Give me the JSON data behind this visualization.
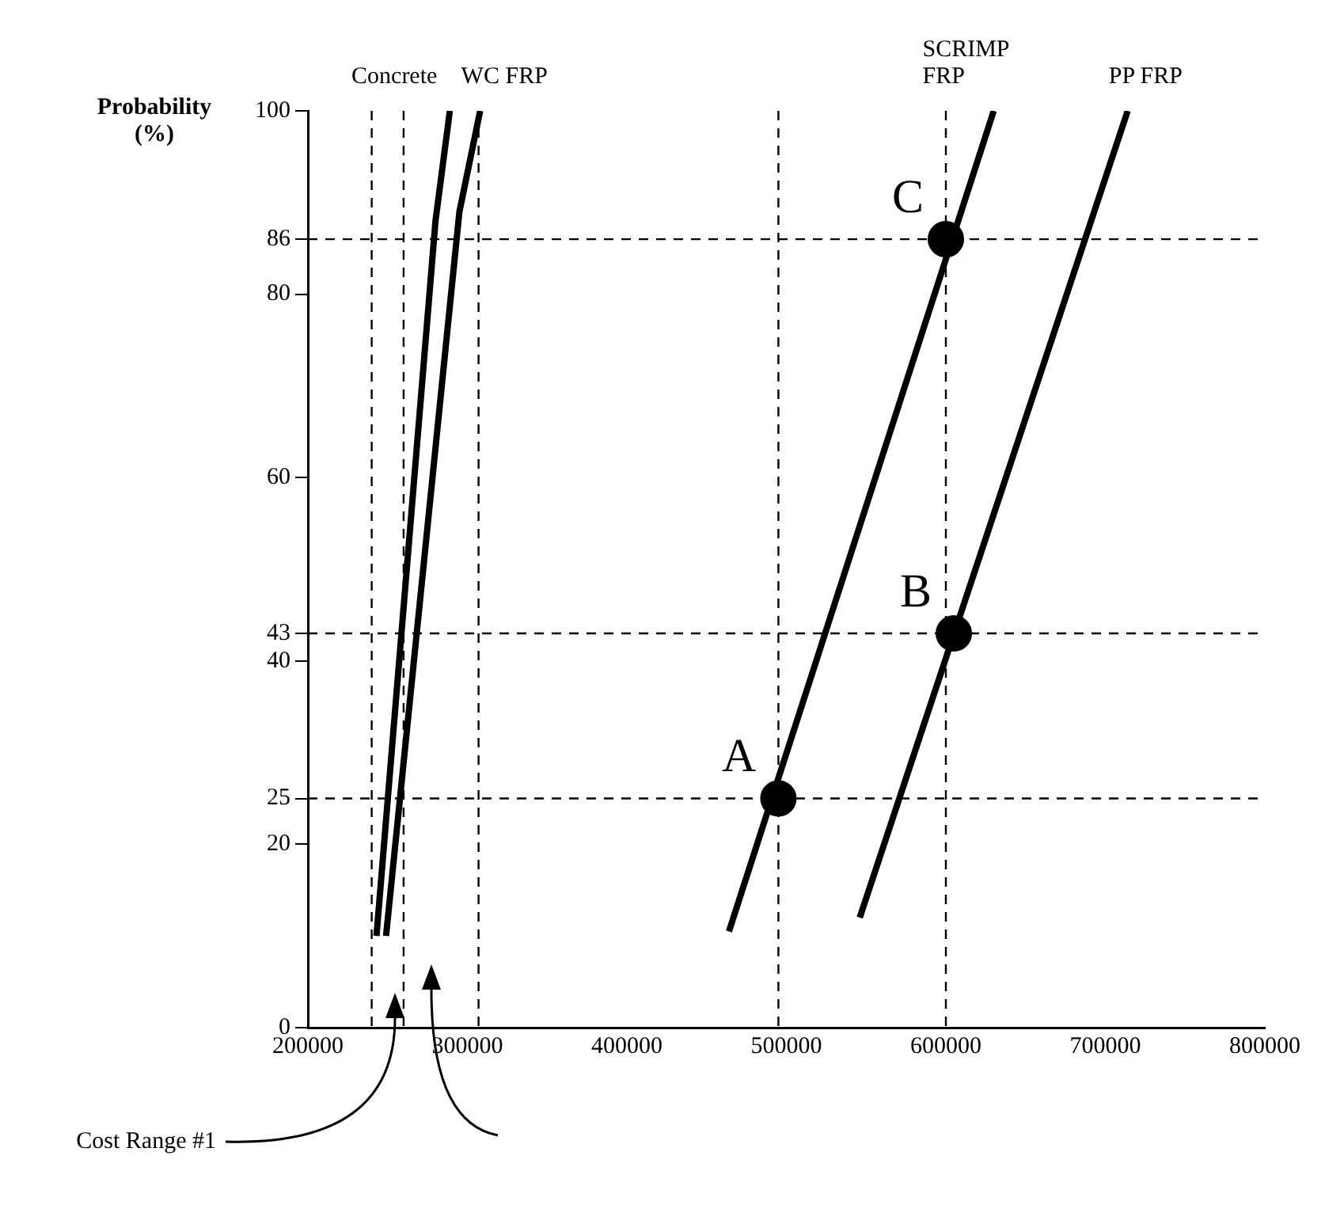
{
  "chart_data": {
    "type": "line",
    "ylabel": "Probability (%)",
    "xlim": [
      200000,
      800000
    ],
    "xticks": [
      200000,
      300000,
      400000,
      500000,
      600000,
      700000,
      800000
    ],
    "ylim": [
      0,
      100
    ],
    "yticks": [
      0,
      20,
      25,
      40,
      43,
      60,
      80,
      86,
      100
    ],
    "grid": false,
    "legend": false,
    "line_style": "solid",
    "series": [
      {
        "name": "Concrete",
        "color": "#000000",
        "x": [
          243000,
          280000,
          289000
        ],
        "values": [
          10,
          88,
          100
        ]
      },
      {
        "name": "WC FRP",
        "color": "#000000",
        "x": [
          249000,
          295000,
          308000
        ],
        "values": [
          10,
          89,
          100
        ]
      },
      {
        "name": "SCRIMP FRP",
        "color": "#000000",
        "x": [
          464000,
          630000
        ],
        "values": [
          10.5,
          100
        ]
      },
      {
        "name": "PP FRP",
        "color": "#000000",
        "x": [
          546000,
          714000
        ],
        "values": [
          12,
          100
        ]
      },
      {
        "type": "scatter",
        "marker": "circle",
        "color": "#000000",
        "x": [
          495000,
          605000,
          600000
        ],
        "values": [
          25,
          43,
          86
        ]
      }
    ],
    "ref_lines": [
      {
        "axis": "y",
        "value": 86,
        "line_style": "dashed"
      },
      {
        "axis": "y",
        "value": 43,
        "line_style": "dashed"
      },
      {
        "axis": "y",
        "value": 25,
        "line_style": "dashed"
      },
      {
        "axis": "x",
        "value": 495000,
        "line_style": "dashed"
      },
      {
        "axis": "x",
        "value": 600000,
        "line_style": "dashed"
      },
      {
        "axis": "x",
        "value": 240000,
        "line_style": "dashed"
      },
      {
        "axis": "x",
        "value": 260000,
        "line_style": "dashed"
      },
      {
        "axis": "x",
        "value": 307000,
        "line_style": "dashed"
      }
    ],
    "annotations": [
      {
        "text": "A",
        "x": 495000,
        "y": 25
      },
      {
        "text": "B",
        "x": 605000,
        "y": 43
      },
      {
        "text": "C",
        "x": 600000,
        "y": 86
      },
      "Cost Range #1"
    ]
  }
}
